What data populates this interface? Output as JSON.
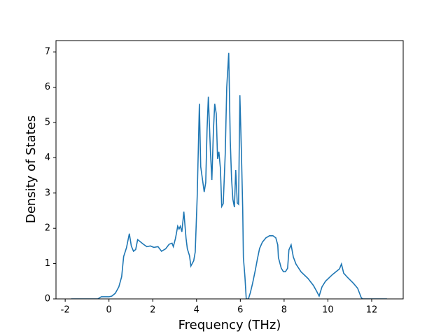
{
  "chart_data": {
    "type": "line",
    "xlabel": "Frequency (THz)",
    "ylabel": "Density of States",
    "xlim": [
      -2.42,
      13.44
    ],
    "ylim": [
      0,
      7.32
    ],
    "xticks": [
      -2,
      0,
      2,
      4,
      6,
      8,
      10,
      12
    ],
    "yticks": [
      0,
      1,
      2,
      3,
      4,
      5,
      6,
      7
    ],
    "grid": false,
    "series": [
      {
        "color": "#1f77b4",
        "x": [
          -1.73,
          -0.51,
          -0.35,
          -0.19,
          0,
          0.13,
          0.29,
          0.45,
          0.58,
          0.67,
          0.8,
          0.93,
          1.02,
          1.12,
          1.22,
          1.31,
          1.57,
          1.73,
          1.89,
          2.05,
          2.24,
          2.4,
          2.59,
          2.75,
          2.88,
          2.94,
          3.04,
          3.14,
          3.2,
          3.26,
          3.33,
          3.42,
          3.52,
          3.58,
          3.68,
          3.74,
          3.87,
          3.94,
          4.03,
          4.13,
          4.19,
          4.29,
          4.35,
          4.42,
          4.48,
          4.54,
          4.64,
          4.7,
          4.77,
          4.83,
          4.9,
          4.96,
          5.02,
          5.09,
          5.15,
          5.22,
          5.31,
          5.38,
          5.47,
          5.54,
          5.6,
          5.66,
          5.73,
          5.79,
          5.86,
          5.92,
          5.98,
          6.05,
          6.11,
          6.14,
          6.21,
          6.27,
          6.37,
          6.46,
          6.56,
          6.69,
          6.78,
          6.88,
          7.01,
          7.17,
          7.33,
          7.49,
          7.62,
          7.71,
          7.74,
          7.87,
          7.97,
          8.06,
          8.16,
          8.22,
          8.32,
          8.42,
          8.54,
          8.77,
          9.09,
          9.34,
          9.5,
          9.6,
          9.73,
          9.89,
          10.21,
          10.53,
          10.62,
          10.72,
          10.91,
          11.17,
          11.36,
          11.52,
          11.58,
          12.7
        ],
        "values": [
          0,
          0,
          0.06,
          0.06,
          0.06,
          0.08,
          0.16,
          0.34,
          0.63,
          1.2,
          1.45,
          1.85,
          1.5,
          1.35,
          1.4,
          1.68,
          1.55,
          1.48,
          1.5,
          1.46,
          1.48,
          1.35,
          1.42,
          1.55,
          1.58,
          1.48,
          1.72,
          2.06,
          1.98,
          2.06,
          1.9,
          2.47,
          1.72,
          1.42,
          1.22,
          0.93,
          1.08,
          1.33,
          2.9,
          5.53,
          3.75,
          3.3,
          3.03,
          3.3,
          4.8,
          5.73,
          4.1,
          3.37,
          4.75,
          5.53,
          5.25,
          3.97,
          4.17,
          3.7,
          2.62,
          2.7,
          4.1,
          6.0,
          6.97,
          4.5,
          3.4,
          2.82,
          2.6,
          3.65,
          2.72,
          2.68,
          5.77,
          4.15,
          2.52,
          1.17,
          0.63,
          0,
          0,
          0.18,
          0.44,
          0.83,
          1.13,
          1.43,
          1.61,
          1.73,
          1.79,
          1.79,
          1.73,
          1.53,
          1.17,
          0.87,
          0.77,
          0.77,
          0.87,
          1.39,
          1.53,
          1.19,
          0.99,
          0.77,
          0.58,
          0.38,
          0.2,
          0.08,
          0.34,
          0.5,
          0.69,
          0.85,
          0.99,
          0.73,
          0.6,
          0.44,
          0.3,
          0.04,
          0,
          0
        ]
      }
    ]
  }
}
